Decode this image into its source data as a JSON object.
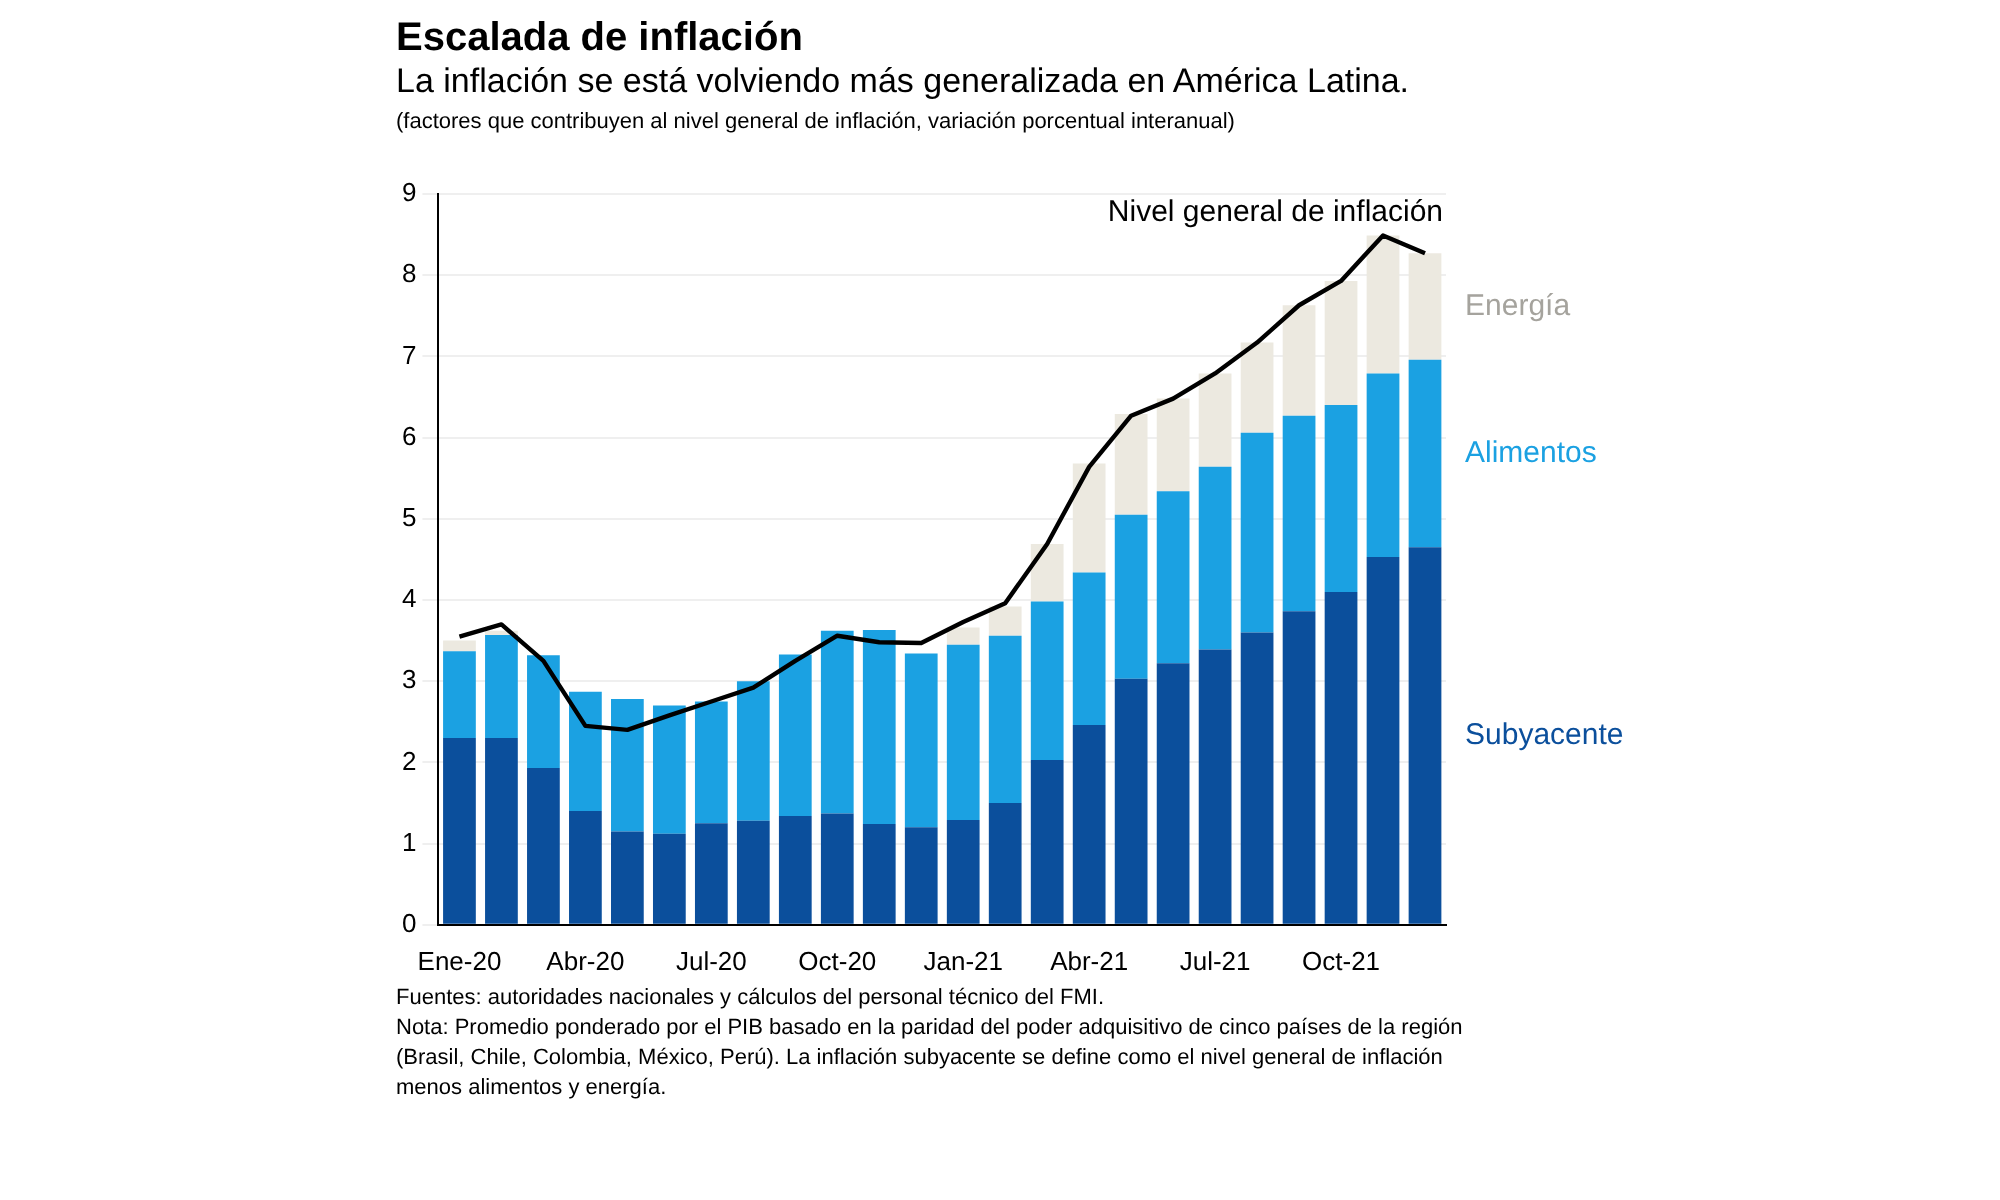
{
  "chart_data": {
    "type": "bar",
    "title": "Escalada de inflación",
    "subtitle": "La inflación se está volviendo más generalizada en América Latina.",
    "ylabel": "(factores que contribuyen al nivel general de inflación, variación porcentual interanual)",
    "categories": [
      "Ene-20",
      null,
      null,
      "Abr-20",
      null,
      null,
      "Jul-20",
      null,
      null,
      "Oct-20",
      null,
      null,
      "Jan-21",
      null,
      null,
      "Abr-21",
      null,
      null,
      "Jul-21",
      null,
      null,
      "Oct-21",
      null,
      null
    ],
    "stacked": true,
    "legend": false,
    "grid": "y",
    "ylim": [
      0,
      9
    ],
    "yticks": [
      0,
      1,
      2,
      3,
      4,
      5,
      6,
      7,
      8,
      9
    ],
    "series": [
      {
        "name": "Subyacente",
        "color": "#0b4f9c",
        "values": [
          2.3,
          2.3,
          1.93,
          1.4,
          1.15,
          1.12,
          1.25,
          1.28,
          1.34,
          1.37,
          1.24,
          1.2,
          1.29,
          1.5,
          2.03,
          2.46,
          3.03,
          3.22,
          3.39,
          3.6,
          3.86,
          4.1,
          4.53,
          4.65
        ]
      },
      {
        "name": "Alimentos",
        "color": "#1ba1e2",
        "values": [
          1.07,
          1.27,
          1.39,
          1.47,
          1.63,
          1.58,
          1.5,
          1.72,
          1.99,
          2.25,
          2.39,
          2.14,
          2.16,
          2.06,
          1.95,
          1.88,
          2.02,
          2.12,
          2.25,
          2.46,
          2.41,
          2.3,
          2.26,
          2.31
        ]
      },
      {
        "name": "Energía",
        "color": "#ece9e0",
        "values": [
          0.13,
          0.05,
          0,
          0,
          0,
          0,
          0,
          0,
          0,
          0,
          0,
          0,
          0.21,
          0.36,
          0.71,
          1.34,
          1.24,
          1.14,
          1.15,
          1.11,
          1.36,
          1.53,
          1.7,
          1.31
        ]
      },
      {
        "name": "Nivel general de inflación",
        "type": "line",
        "color": "#000000",
        "marker": "none",
        "values": [
          3.55,
          3.7,
          3.25,
          2.45,
          2.4,
          2.58,
          2.75,
          2.92,
          3.25,
          3.56,
          3.48,
          3.47,
          3.73,
          3.96,
          4.69,
          5.64,
          6.27,
          6.48,
          6.79,
          7.17,
          7.63,
          7.93,
          8.49,
          8.27
        ]
      }
    ],
    "annotations": [
      "Fuentes: autoridades nacionales y cálculos del personal técnico del FMI.",
      "Nota: Promedio ponderado por el PIB basado en la paridad del poder adquisitivo de cinco países de la región (Brasil, Chile, Colombia, México, Perú). La inflación subyacente se define como el nivel general de inflación menos alimentos y energía."
    ]
  }
}
